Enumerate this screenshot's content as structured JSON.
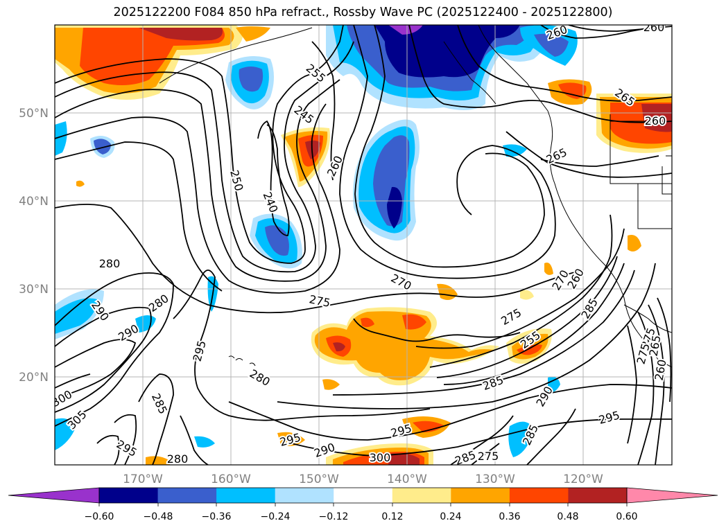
{
  "title": "2025122200 F084 850 hPa refract., Rossby Wave PC (2025122400 - 2025122800)",
  "lat_labels": [
    "50°N",
    "40°N",
    "30°N",
    "20°N"
  ],
  "lon_labels": [
    "170°W",
    "160°W",
    "150°W",
    "140°W",
    "130°W",
    "120°W"
  ],
  "axis_label_color": "#808080",
  "colorbar": {
    "ticks": [
      "−0.60",
      "−0.48",
      "−0.36",
      "−0.24",
      "−0.12",
      "0.12",
      "0.24",
      "0.36",
      "0.48",
      "0.60"
    ],
    "extend_low_color": "#9932cc",
    "extend_high_color": "#ff88aa",
    "colors": [
      "#00008b",
      "#3a5fcd",
      "#00bfff",
      "#b0e2ff",
      "#ffffff",
      "#ffec8b",
      "#ffa500",
      "#ff4500",
      "#b22222"
    ]
  },
  "contour_labels": [
    "255",
    "260",
    "245",
    "250",
    "240",
    "260",
    "260",
    "265",
    "265",
    "260",
    "280",
    "290",
    "280",
    "290",
    "295",
    "280",
    "275",
    "270",
    "275",
    "270",
    "260",
    "255",
    "285",
    "275",
    "285",
    "290",
    "295",
    "300",
    "305",
    "285",
    "295",
    "280",
    "295",
    "290",
    "300",
    "285",
    "275",
    "285",
    "295",
    "275",
    "265",
    "260"
  ]
}
